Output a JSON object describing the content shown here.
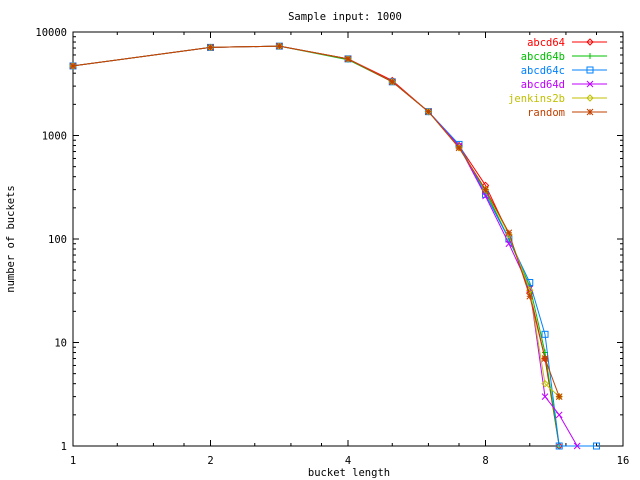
{
  "chart_data": {
    "type": "line",
    "title": "Sample input: 1000",
    "xlabel": "bucket length",
    "ylabel": "number of buckets",
    "x_scale": "log2",
    "y_scale": "log10",
    "xlim": [
      1,
      16
    ],
    "ylim": [
      1,
      10000
    ],
    "x_ticks": [
      {
        "value": 1,
        "label": "1"
      },
      {
        "value": 2,
        "label": "2"
      },
      {
        "value": 4,
        "label": "4"
      },
      {
        "value": 8,
        "label": "8"
      },
      {
        "value": 16,
        "label": "16"
      }
    ],
    "y_ticks": [
      {
        "value": 1,
        "label": "1"
      },
      {
        "value": 10,
        "label": "10"
      },
      {
        "value": 100,
        "label": "100"
      },
      {
        "value": 1000,
        "label": "1000"
      },
      {
        "value": 10000,
        "label": "10000"
      }
    ],
    "grid": false,
    "legend_position": "top-right",
    "series": [
      {
        "name": "abcd64",
        "color": "#ff0000",
        "marker": "diamond",
        "x": [
          1,
          2,
          2.83,
          4,
          5,
          6,
          7,
          8,
          9,
          10,
          10.8,
          11.6
        ],
        "y": [
          4700,
          7100,
          7300,
          5500,
          3400,
          1700,
          800,
          330,
          110,
          30,
          7,
          1
        ]
      },
      {
        "name": "abcd64b",
        "color": "#00c000",
        "marker": "plus",
        "x": [
          1,
          2,
          2.83,
          4,
          5,
          6,
          7,
          8,
          9,
          10,
          10.8,
          11.6
        ],
        "y": [
          4700,
          7100,
          7300,
          5400,
          3300,
          1700,
          780,
          290,
          100,
          35,
          8,
          1
        ]
      },
      {
        "name": "abcd64c",
        "color": "#0080ff",
        "marker": "square",
        "x": [
          1,
          2,
          2.83,
          4,
          5,
          6,
          7,
          8,
          9,
          10,
          10.8,
          11.6,
          14
        ],
        "y": [
          4700,
          7100,
          7300,
          5500,
          3300,
          1700,
          820,
          270,
          100,
          38,
          12,
          1,
          1
        ]
      },
      {
        "name": "abcd64d",
        "color": "#c000ff",
        "marker": "cross",
        "x": [
          1,
          2,
          2.83,
          4,
          5,
          6,
          7,
          8,
          9,
          10,
          10.8,
          11.6,
          12.7
        ],
        "y": [
          4700,
          7100,
          7300,
          5500,
          3300,
          1700,
          790,
          260,
          90,
          33,
          3,
          2,
          1
        ]
      },
      {
        "name": "jenkins2b",
        "color": "#c0c000",
        "marker": "diamond",
        "x": [
          1,
          2,
          2.83,
          4,
          5,
          6,
          7,
          8,
          9,
          10,
          10.8,
          11.6
        ],
        "y": [
          4700,
          7100,
          7300,
          5500,
          3300,
          1700,
          760,
          300,
          110,
          32,
          4,
          3
        ]
      },
      {
        "name": "random",
        "color": "#c04000",
        "marker": "star",
        "x": [
          1,
          2,
          2.83,
          4,
          5,
          6,
          7,
          8,
          9,
          10,
          10.8,
          11.6
        ],
        "y": [
          4700,
          7100,
          7300,
          5500,
          3300,
          1700,
          760,
          300,
          115,
          28,
          7,
          3
        ]
      }
    ]
  }
}
